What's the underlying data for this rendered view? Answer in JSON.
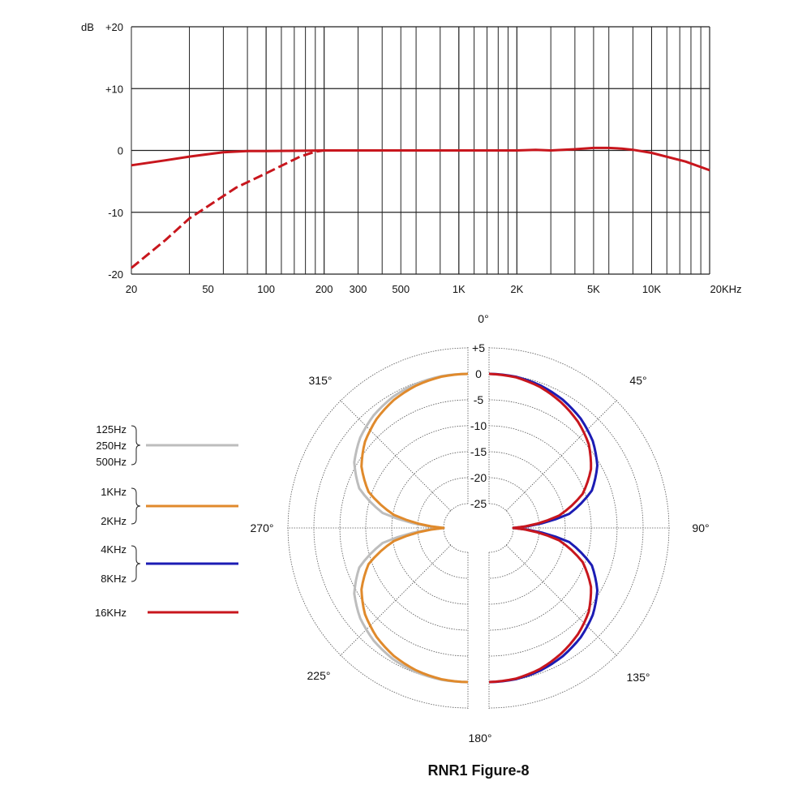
{
  "chart_data": [
    {
      "type": "line",
      "x_scale": "log",
      "xlim": [
        20,
        20000
      ],
      "ylim": [
        -20,
        20
      ],
      "grid": true,
      "ylabel": "dB",
      "y_ticks": [
        "+20",
        "+10",
        "0",
        "-10",
        "-20"
      ],
      "y_tick_values": [
        20,
        10,
        0,
        -10,
        -20
      ],
      "x_ticks": [
        "20",
        "50",
        "100",
        "200",
        "300",
        "500",
        "1K",
        "2K",
        "5K",
        "10K",
        "20KHz"
      ],
      "x_tick_values": [
        20,
        50,
        100,
        200,
        300,
        500,
        1000,
        2000,
        5000,
        10000,
        20000
      ],
      "series": [
        {
          "style": "solid",
          "color": "#c8161d",
          "x": [
            20,
            30,
            40,
            50,
            60,
            80,
            100,
            200,
            1000,
            2000,
            2500,
            3000,
            4000,
            5000,
            6000,
            7000,
            8000,
            10000,
            15000,
            20000
          ],
          "y": [
            -2.4,
            -1.6,
            -1.0,
            -0.6,
            -0.3,
            -0.1,
            -0.1,
            0,
            0,
            0,
            0.1,
            0,
            0.2,
            0.4,
            0.4,
            0.3,
            0.1,
            -0.4,
            -1.8,
            -3.2
          ]
        },
        {
          "style": "dashed",
          "color": "#c8161d",
          "x": [
            20,
            30,
            40,
            50,
            70,
            100,
            150,
            180,
            200
          ],
          "y": [
            -19,
            -14.5,
            -11,
            -9,
            -6,
            -3.7,
            -1,
            -0.2,
            0
          ]
        }
      ]
    },
    {
      "type": "polar",
      "title": "RNR1 Figure-8",
      "r_ticks": [
        "+5",
        "0",
        "-5",
        "-10",
        "-15",
        "-20",
        "-25"
      ],
      "r_tick_values": [
        5,
        0,
        -5,
        -10,
        -15,
        -20,
        -25
      ],
      "angle_labels": [
        "0°",
        "45°",
        "90°",
        "135°",
        "180°",
        "225°",
        "270°",
        "315°"
      ],
      "angle_values": [
        0,
        45,
        90,
        135,
        180,
        225,
        270,
        315
      ],
      "angles_deg_from_axis": [
        0,
        10,
        20,
        30,
        40,
        50,
        60,
        70,
        80,
        90
      ],
      "series": [
        {
          "name": "125Hz 250Hz 500Hz",
          "labels": [
            "125Hz",
            "250Hz",
            "500Hz"
          ],
          "color": "#bdbdbd",
          "side": "left",
          "db": [
            0,
            0,
            -0.2,
            -0.6,
            -1.4,
            -2.6,
            -4.4,
            -7.4,
            -13,
            -25
          ]
        },
        {
          "name": "1KHz 2KHz",
          "labels": [
            "1KHz",
            "2KHz"
          ],
          "color": "#e08a2c",
          "side": "left",
          "db": [
            0,
            -0.1,
            -0.5,
            -1.2,
            -2.3,
            -3.8,
            -6.0,
            -9.3,
            -15.2,
            -25
          ]
        },
        {
          "name": "4KHz 8KHz",
          "labels": [
            "4KHz",
            "8KHz"
          ],
          "color": "#1c1cb4",
          "side": "right",
          "db": [
            0,
            -0.1,
            -0.5,
            -1.2,
            -2.2,
            -3.6,
            -5.6,
            -8.6,
            -14,
            -25
          ]
        },
        {
          "name": "16KHz",
          "labels": [
            "16KHz"
          ],
          "color": "#c8161d",
          "side": "right",
          "db": [
            0,
            -0.2,
            -0.8,
            -1.8,
            -3.0,
            -4.6,
            -7.0,
            -10.5,
            -16,
            -25
          ]
        }
      ]
    }
  ]
}
